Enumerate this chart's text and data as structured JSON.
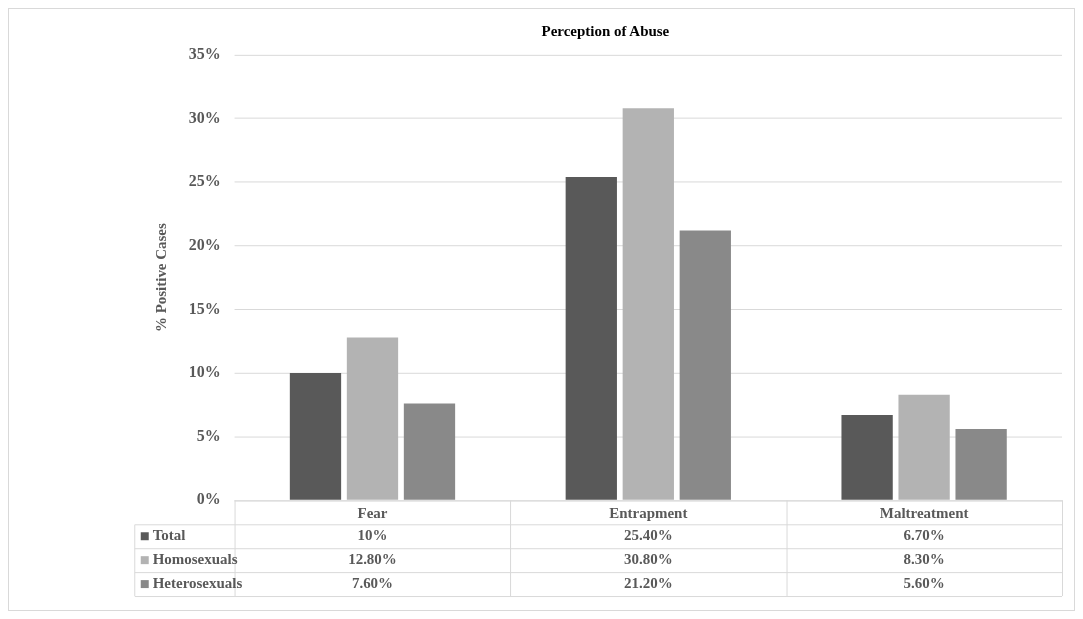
{
  "chart_data": {
    "type": "bar",
    "title": "Perception of Abuse",
    "ylabel": "% Positive Cases",
    "categories": [
      "Fear",
      "Entrapment",
      "Maltreatment"
    ],
    "series": [
      {
        "name": "Total",
        "color": "#595959",
        "values": [
          10,
          25.4,
          6.7
        ],
        "value_labels": [
          "10%",
          "25.40%",
          "6.70%"
        ]
      },
      {
        "name": "Homosexuals",
        "color": "#b3b3b3",
        "values": [
          12.8,
          30.8,
          8.3
        ],
        "value_labels": [
          "12.80%",
          "30.80%",
          "8.30%"
        ]
      },
      {
        "name": "Heterosexuals",
        "color": "#898989",
        "values": [
          7.6,
          21.2,
          5.6
        ],
        "value_labels": [
          "7.60%",
          "21.20%",
          "5.60%"
        ]
      }
    ],
    "ylim": [
      0,
      35
    ],
    "yticks": [
      {
        "value": 0,
        "label": "0%"
      },
      {
        "value": 5,
        "label": "5%"
      },
      {
        "value": 10,
        "label": "10%"
      },
      {
        "value": 15,
        "label": "15%"
      },
      {
        "value": 20,
        "label": "20%"
      },
      {
        "value": 25,
        "label": "25%"
      },
      {
        "value": 30,
        "label": "30%"
      },
      {
        "value": 35,
        "label": "35%"
      }
    ],
    "grid": "y",
    "legend": "bottom"
  }
}
